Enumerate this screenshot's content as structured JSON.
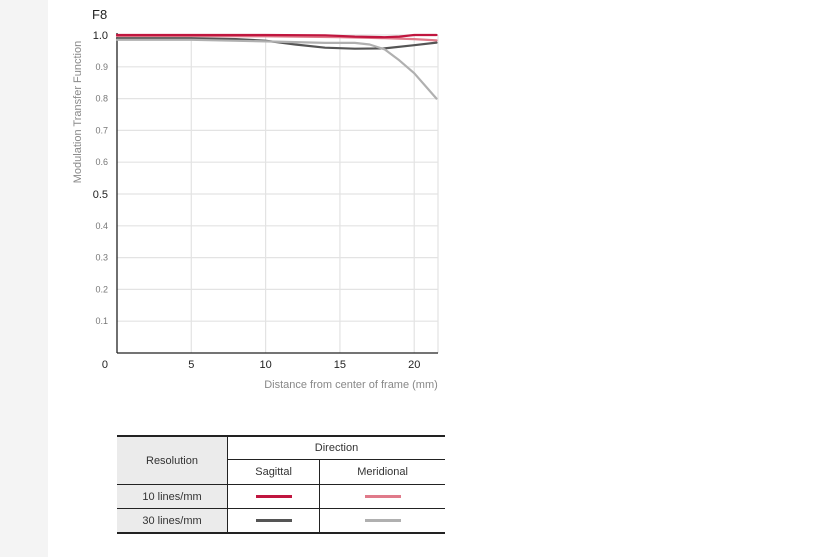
{
  "chart_data": {
    "type": "line",
    "title": "F8",
    "xlabel": "Distance from center of frame (mm)",
    "ylabel": "Modulation Transfer Function",
    "xlim": [
      0,
      21.6
    ],
    "ylim": [
      0,
      1.0
    ],
    "x_ticks": [
      "5",
      "10",
      "15",
      "20"
    ],
    "y_ticks": [
      "0.1",
      "0.2",
      "0.3",
      "0.4",
      "0.5",
      "0.6",
      "0.7",
      "0.8",
      "0.9",
      "1.0"
    ],
    "origin_label": "0",
    "grid": true,
    "series": [
      {
        "name": "10 lines/mm Sagittal",
        "color": "#c0163f",
        "points": [
          [
            0,
            1.0
          ],
          [
            5,
            1.0
          ],
          [
            10,
            1.0
          ],
          [
            14,
            0.999
          ],
          [
            16,
            0.995
          ],
          [
            18,
            0.993
          ],
          [
            19,
            0.995
          ],
          [
            20,
            1.0
          ],
          [
            21.5,
            1.0
          ]
        ]
      },
      {
        "name": "10 lines/mm Meridional",
        "color": "#e07a8a",
        "points": [
          [
            0,
            0.997
          ],
          [
            5,
            0.997
          ],
          [
            10,
            0.996
          ],
          [
            15,
            0.993
          ],
          [
            18,
            0.99
          ],
          [
            20,
            0.987
          ],
          [
            21.5,
            0.983
          ]
        ]
      },
      {
        "name": "30 lines/mm Sagittal",
        "color": "#555555",
        "points": [
          [
            0,
            0.99
          ],
          [
            5,
            0.99
          ],
          [
            8,
            0.987
          ],
          [
            10,
            0.982
          ],
          [
            12,
            0.97
          ],
          [
            14,
            0.96
          ],
          [
            16,
            0.957
          ],
          [
            18,
            0.958
          ],
          [
            20,
            0.968
          ],
          [
            21.5,
            0.976
          ]
        ]
      },
      {
        "name": "30 lines/mm Meridional",
        "color": "#b0b0b0",
        "points": [
          [
            0,
            0.985
          ],
          [
            5,
            0.985
          ],
          [
            10,
            0.98
          ],
          [
            14,
            0.975
          ],
          [
            16,
            0.975
          ],
          [
            17,
            0.97
          ],
          [
            18,
            0.955
          ],
          [
            19,
            0.92
          ],
          [
            20,
            0.88
          ],
          [
            21.5,
            0.8
          ]
        ]
      }
    ]
  },
  "legend_table": {
    "resolution_header": "Resolution",
    "direction_header": "Direction",
    "sagittal_header": "Sagittal",
    "meridional_header": "Meridional",
    "rows": [
      {
        "label": "10 lines/mm",
        "sagittal_color": "#c0163f",
        "meridional_color": "#e07a8a"
      },
      {
        "label": "30 lines/mm",
        "sagittal_color": "#555555",
        "meridional_color": "#b0b0b0"
      }
    ]
  }
}
